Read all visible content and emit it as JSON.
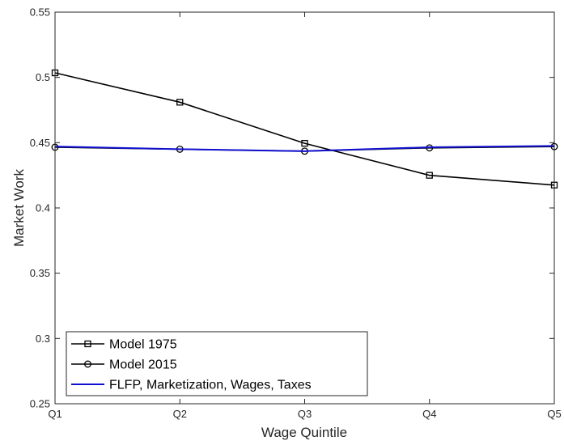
{
  "chart_data": {
    "type": "line",
    "title": "",
    "xlabel": "Wage Quintile",
    "ylabel": "Market Work",
    "categories": [
      "Q1",
      "Q2",
      "Q3",
      "Q4",
      "Q5"
    ],
    "ylim": [
      0.25,
      0.55
    ],
    "yticks": [
      "0.25",
      "0.3",
      "0.35",
      "0.4",
      "0.45",
      "0.5",
      "0.55"
    ],
    "grid": false,
    "legend_position": "bottom-left",
    "series": [
      {
        "name": "Model 1975",
        "values": [
          0.5035,
          0.481,
          0.4495,
          0.425,
          0.4175
        ],
        "color": "#000000",
        "marker": "square"
      },
      {
        "name": "Model 2015",
        "values": [
          0.4465,
          0.445,
          0.4435,
          0.446,
          0.447
        ],
        "color": "#000000",
        "marker": "circle"
      },
      {
        "name": "FLFP, Marketization, Wages, Taxes",
        "values": [
          0.447,
          0.445,
          0.4435,
          0.4465,
          0.4475
        ],
        "color": "#1010d0",
        "marker": "none"
      }
    ]
  }
}
